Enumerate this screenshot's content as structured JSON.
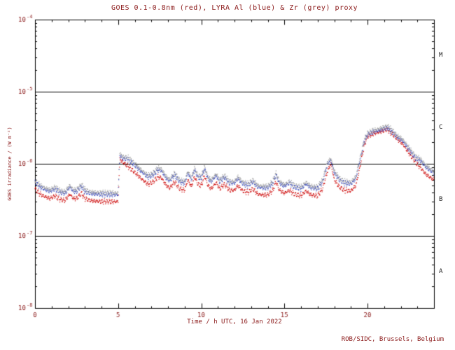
{
  "credit": "ROB/SIDC, Brussels, Belgium",
  "chart_data": {
    "type": "line",
    "title": "GOES 0.1-0.8nm (red), LYRA Al (blue) & Zr (grey) proxy",
    "xlabel": "Time / h UTC, 16 Jan 2022",
    "ylabel": "GOES irradiance / (W m⁻²)",
    "x_range": [
      0,
      24
    ],
    "x_major_ticks": [
      0,
      5,
      10,
      15,
      20
    ],
    "x_minor_step": 1,
    "y_scale": "log",
    "y_range": [
      1e-08,
      0.0001
    ],
    "y_tick_exponents": [
      -8,
      -7,
      -6,
      -5,
      -4
    ],
    "hlines": [
      1e-07,
      1e-06,
      1e-05
    ],
    "class_labels": [
      "M",
      "C",
      "B",
      "A"
    ],
    "grid": false,
    "legend": "in title",
    "flux_scale": 1e-09,
    "series_t": [
      0.0,
      0.3,
      0.6,
      0.9,
      1.2,
      1.5,
      1.8,
      2.1,
      2.3,
      2.5,
      2.8,
      3.0,
      3.3,
      3.6,
      4.0,
      4.4,
      4.8,
      5.0,
      5.1,
      5.3,
      5.6,
      6.0,
      6.4,
      6.8,
      7.1,
      7.4,
      7.6,
      7.9,
      8.1,
      8.4,
      8.7,
      9.0,
      9.2,
      9.4,
      9.6,
      9.8,
      10.0,
      10.2,
      10.4,
      10.6,
      10.9,
      11.1,
      11.4,
      11.7,
      12.0,
      12.2,
      12.5,
      12.8,
      13.1,
      13.4,
      13.7,
      14.0,
      14.3,
      14.5,
      14.7,
      15.0,
      15.3,
      15.6,
      16.0,
      16.3,
      16.6,
      17.0,
      17.3,
      17.6,
      17.8,
      18.0,
      18.3,
      18.6,
      19.0,
      19.3,
      19.5,
      19.8,
      20.0,
      20.3,
      20.7,
      21.0,
      21.2,
      21.5,
      21.8,
      22.1,
      22.5,
      22.9,
      23.2,
      23.5,
      23.8,
      24.0
    ],
    "series": [
      {
        "name": "GOES 0.1-0.8nm",
        "color": "#cc0000",
        "v": [
          450,
          380,
          350,
          330,
          360,
          320,
          310,
          380,
          330,
          330,
          390,
          330,
          310,
          305,
          300,
          300,
          298,
          300,
          1150,
          1050,
          920,
          760,
          620,
          520,
          560,
          660,
          640,
          500,
          460,
          560,
          450,
          430,
          600,
          480,
          660,
          520,
          500,
          680,
          500,
          450,
          550,
          450,
          520,
          430,
          430,
          500,
          420,
          400,
          450,
          380,
          370,
          370,
          430,
          560,
          430,
          390,
          430,
          380,
          360,
          420,
          370,
          360,
          450,
          800,
          1000,
          600,
          480,
          430,
          420,
          500,
          800,
          1800,
          2400,
          2600,
          2750,
          2900,
          3000,
          2600,
          2200,
          1900,
          1400,
          1050,
          880,
          720,
          640,
          600
        ]
      },
      {
        "name": "LYRA Al proxy",
        "color": "#3344bb",
        "v": [
          560,
          475,
          438,
          413,
          450,
          400,
          388,
          475,
          413,
          413,
          488,
          413,
          388,
          380,
          375,
          375,
          372,
          375,
          1290,
          1180,
          1150,
          950,
          775,
          650,
          700,
          825,
          800,
          625,
          575,
          700,
          563,
          538,
          750,
          600,
          825,
          650,
          625,
          850,
          625,
          563,
          688,
          563,
          650,
          538,
          538,
          625,
          525,
          500,
          563,
          475,
          463,
          463,
          538,
          700,
          538,
          488,
          538,
          475,
          450,
          525,
          463,
          450,
          563,
          1000,
          1120,
          750,
          600,
          538,
          525,
          625,
          1000,
          2000,
          2520,
          2730,
          2890,
          3050,
          3150,
          2730,
          2310,
          2090,
          1570,
          1180,
          1100,
          900,
          800,
          750
        ]
      },
      {
        "name": "LYRA Zr proxy",
        "color": "#9a9a9a",
        "v": [
          594,
          504,
          464,
          438,
          477,
          424,
          411,
          504,
          438,
          438,
          517,
          438,
          411,
          403,
          398,
          398,
          394,
          398,
          1368,
          1251,
          1219,
          1007,
          822,
          689,
          742,
          875,
          848,
          663,
          610,
          742,
          596,
          570,
          795,
          636,
          875,
          689,
          663,
          901,
          663,
          596,
          729,
          596,
          689,
          570,
          570,
          663,
          557,
          530,
          596,
          504,
          491,
          491,
          570,
          742,
          570,
          517,
          570,
          504,
          477,
          557,
          491,
          477,
          596,
          1060,
          1187,
          795,
          636,
          570,
          557,
          663,
          1060,
          2120,
          2671,
          2894,
          3063,
          3233,
          3339,
          2894,
          2449,
          2215,
          1664,
          1251,
          1166,
          954,
          848,
          795
        ]
      }
    ]
  }
}
